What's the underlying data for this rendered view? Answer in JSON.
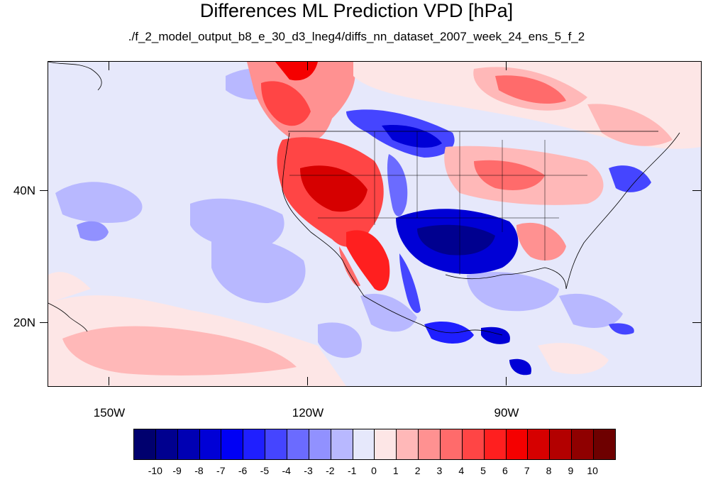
{
  "map": {
    "title": "Differences ML Prediction VPD [hPa]",
    "subtitle": "./f_2_model_output_b8_e_30_d3_lneg4/diffs_nn_dataset_2007_week_24_ens_5_f_2",
    "longitude_labels": [
      "150W",
      "120W",
      "90W"
    ],
    "latitude_labels": [
      "40N",
      "20N"
    ],
    "colorbar": {
      "labels": [
        "-10",
        "-9",
        "-8",
        "-7",
        "-6",
        "-5",
        "-4",
        "-3",
        "-2",
        "-1",
        "0",
        "1",
        "2",
        "3",
        "4",
        "5",
        "6",
        "7",
        "8",
        "9",
        "10"
      ],
      "colors": [
        "#00006e",
        "#00008f",
        "#0000b3",
        "#0000d6",
        "#0000f5",
        "#1f1fff",
        "#4545ff",
        "#6b6bff",
        "#9191ff",
        "#b8b8ff",
        "#e6e8fb",
        "#fde6e6",
        "#ffb8b8",
        "#ff9191",
        "#ff6b6b",
        "#ff4545",
        "#ff1f1f",
        "#f50000",
        "#d60000",
        "#b30000",
        "#8f0000",
        "#6e0000"
      ]
    }
  }
}
